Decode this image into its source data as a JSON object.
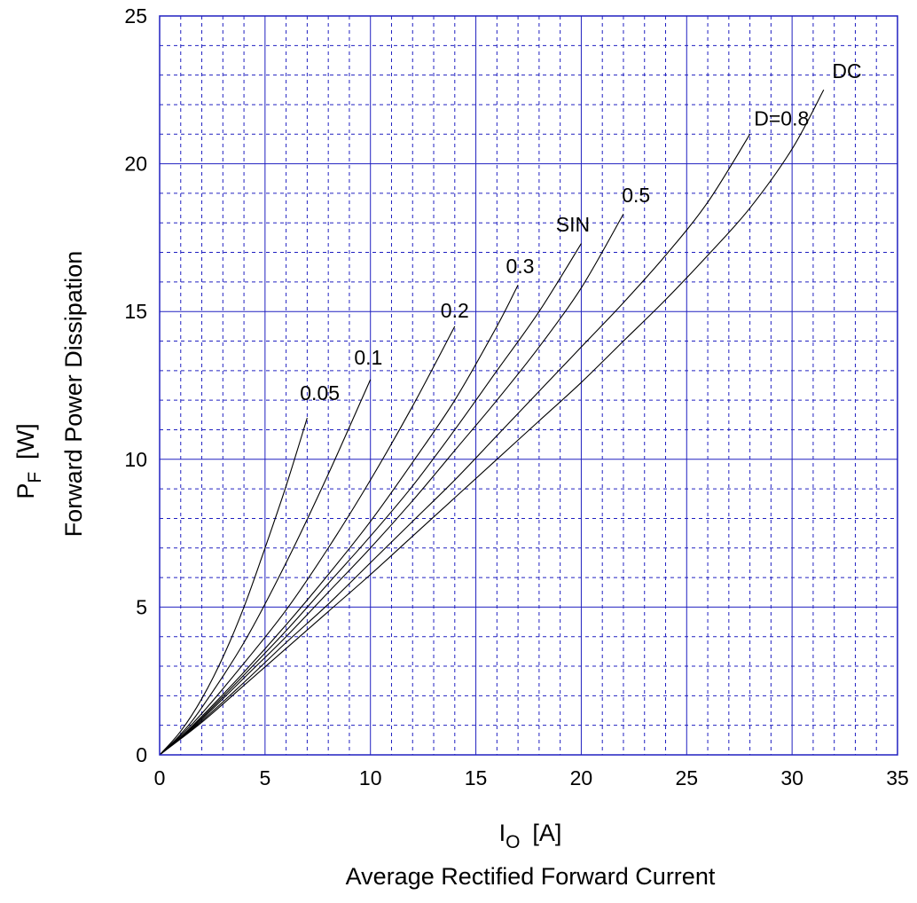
{
  "chart_data": {
    "type": "line",
    "xlim": [
      0,
      35
    ],
    "ylim": [
      0,
      25
    ],
    "x_ticks": [
      "0",
      "5",
      "10",
      "15",
      "20",
      "25",
      "30",
      "35"
    ],
    "y_ticks": [
      "0",
      "5",
      "10",
      "15",
      "20",
      "25"
    ],
    "x_minor_step": 1,
    "y_minor_step": 1,
    "grid": true,
    "grid_color": "#2020c0",
    "line_color": "#000000",
    "xlabel_symbol": "I",
    "xlabel_subscript": "O",
    "xlabel_unit": "[A]",
    "xlabel": "Average Rectified Forward Current",
    "ylabel_symbol": "P",
    "ylabel_subscript": "F",
    "ylabel_unit": "[W]",
    "ylabel": "Forward Power Dissipation",
    "series": [
      {
        "name": "0.05",
        "label": "0.05",
        "label_at": [
          7.6,
          12.0
        ],
        "x": [
          0,
          1,
          2,
          3,
          4,
          5,
          6,
          7
        ],
        "y": [
          0,
          0.8,
          1.9,
          3.3,
          5.0,
          7.0,
          9.1,
          11.4
        ]
      },
      {
        "name": "0.1",
        "label": "0.1",
        "label_at": [
          9.9,
          13.2
        ],
        "x": [
          0,
          1,
          2,
          4,
          6,
          8,
          10
        ],
        "y": [
          0,
          0.7,
          1.6,
          3.8,
          6.5,
          9.5,
          12.7
        ]
      },
      {
        "name": "0.2",
        "label": "0.2",
        "label_at": [
          14.0,
          14.8
        ],
        "x": [
          0,
          1,
          2,
          4,
          6,
          8,
          10,
          12,
          14
        ],
        "y": [
          0,
          0.65,
          1.4,
          3.1,
          4.9,
          7.0,
          9.3,
          11.8,
          14.5
        ]
      },
      {
        "name": "0.3",
        "label": "0.3",
        "label_at": [
          17.1,
          16.3
        ],
        "x": [
          0,
          1,
          2,
          4,
          6,
          8,
          10,
          12,
          14,
          16,
          17
        ],
        "y": [
          0,
          0.6,
          1.3,
          2.8,
          4.4,
          6.1,
          7.9,
          9.9,
          12.0,
          14.5,
          15.9
        ]
      },
      {
        "name": "SIN",
        "label": "SIN",
        "label_at": [
          19.6,
          17.7
        ],
        "x": [
          0,
          1,
          2,
          4,
          6,
          8,
          10,
          12,
          14,
          16,
          18,
          20
        ],
        "y": [
          0,
          0.6,
          1.25,
          2.7,
          4.2,
          5.8,
          7.4,
          9.1,
          11.0,
          13.0,
          15.0,
          17.3
        ]
      },
      {
        "name": "0.5",
        "label": "0.5",
        "label_at": [
          22.6,
          18.7
        ],
        "x": [
          0,
          1,
          2,
          4,
          6,
          8,
          10,
          12,
          14,
          16,
          18,
          20,
          22
        ],
        "y": [
          0,
          0.58,
          1.2,
          2.6,
          4.0,
          5.5,
          7.0,
          8.6,
          10.3,
          12.0,
          13.8,
          15.8,
          18.3
        ]
      },
      {
        "name": "D=0.8",
        "label": "D=0.8",
        "label_at": [
          29.5,
          21.3
        ],
        "x": [
          0,
          2,
          4,
          6,
          8,
          10,
          12,
          14,
          16,
          18,
          20,
          22,
          24,
          26,
          28
        ],
        "y": [
          0,
          1.15,
          2.45,
          3.8,
          5.1,
          6.5,
          7.9,
          9.3,
          10.8,
          12.3,
          13.8,
          15.3,
          16.9,
          18.7,
          21.0
        ]
      },
      {
        "name": "DC",
        "label": "DC",
        "label_at": [
          32.6,
          22.9
        ],
        "x": [
          0,
          2,
          4,
          6,
          8,
          10,
          12,
          14,
          16,
          18,
          20,
          22,
          24,
          26,
          28,
          30,
          31.5
        ],
        "y": [
          0,
          1.1,
          2.35,
          3.6,
          4.85,
          6.1,
          7.4,
          8.7,
          10.0,
          11.3,
          12.6,
          14.0,
          15.4,
          16.9,
          18.5,
          20.5,
          22.5
        ]
      }
    ]
  }
}
